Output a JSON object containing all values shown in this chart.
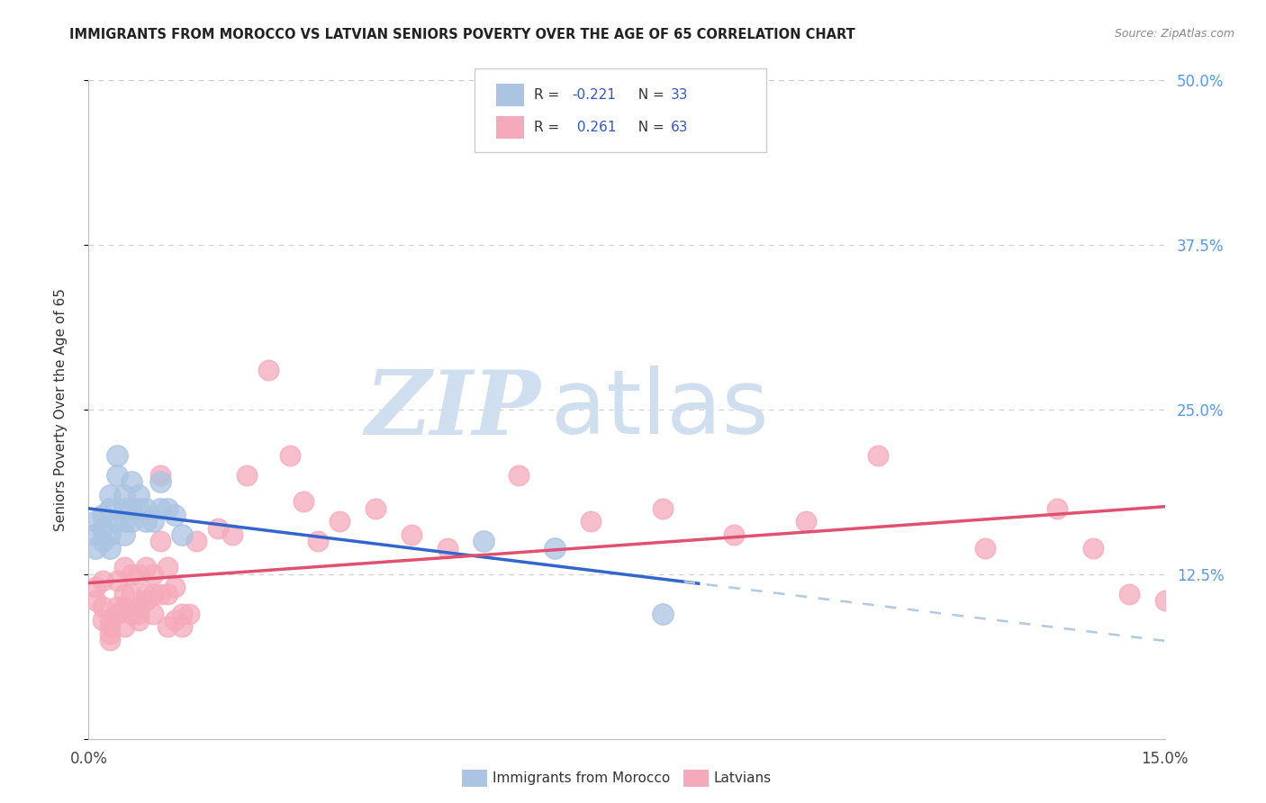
{
  "title": "IMMIGRANTS FROM MOROCCO VS LATVIAN SENIORS POVERTY OVER THE AGE OF 65 CORRELATION CHART",
  "source": "Source: ZipAtlas.com",
  "ylabel": "Seniors Poverty Over the Age of 65",
  "xlim": [
    0.0,
    0.15
  ],
  "ylim": [
    0.0,
    0.5
  ],
  "ytick_values": [
    0.125,
    0.25,
    0.375,
    0.5
  ],
  "right_ytick_labels": [
    "12.5%",
    "25.0%",
    "37.5%",
    "50.0%"
  ],
  "series1_color": "#aac4e2",
  "series2_color": "#f5aabb",
  "line1_color": "#3366cc",
  "line2_color": "#e05070",
  "dashed_color": "#b0c8e0",
  "watermark_zip": "ZIP",
  "watermark_atlas": "atlas",
  "watermark_color": "#d0dff0",
  "grid_color": "#cccccc",
  "background_color": "#ffffff",
  "series1_x": [
    0.001,
    0.001,
    0.001,
    0.002,
    0.002,
    0.002,
    0.003,
    0.003,
    0.003,
    0.003,
    0.004,
    0.004,
    0.004,
    0.005,
    0.005,
    0.005,
    0.005,
    0.006,
    0.006,
    0.006,
    0.007,
    0.007,
    0.008,
    0.008,
    0.009,
    0.01,
    0.01,
    0.011,
    0.012,
    0.013,
    0.055,
    0.065,
    0.08
  ],
  "series1_y": [
    0.145,
    0.155,
    0.165,
    0.15,
    0.16,
    0.17,
    0.145,
    0.155,
    0.175,
    0.185,
    0.2,
    0.165,
    0.215,
    0.165,
    0.175,
    0.155,
    0.185,
    0.165,
    0.175,
    0.195,
    0.175,
    0.185,
    0.175,
    0.165,
    0.165,
    0.175,
    0.195,
    0.175,
    0.17,
    0.155,
    0.15,
    0.145,
    0.095
  ],
  "series2_x": [
    0.001,
    0.001,
    0.002,
    0.002,
    0.002,
    0.003,
    0.003,
    0.003,
    0.003,
    0.004,
    0.004,
    0.004,
    0.005,
    0.005,
    0.005,
    0.005,
    0.006,
    0.006,
    0.006,
    0.007,
    0.007,
    0.007,
    0.007,
    0.008,
    0.008,
    0.008,
    0.009,
    0.009,
    0.009,
    0.01,
    0.01,
    0.01,
    0.011,
    0.011,
    0.011,
    0.012,
    0.012,
    0.013,
    0.013,
    0.014,
    0.015,
    0.018,
    0.02,
    0.022,
    0.025,
    0.028,
    0.03,
    0.032,
    0.035,
    0.04,
    0.045,
    0.05,
    0.06,
    0.07,
    0.08,
    0.09,
    0.1,
    0.11,
    0.125,
    0.135,
    0.14,
    0.145,
    0.15
  ],
  "series2_y": [
    0.115,
    0.105,
    0.1,
    0.09,
    0.12,
    0.085,
    0.09,
    0.08,
    0.075,
    0.095,
    0.1,
    0.12,
    0.11,
    0.085,
    0.1,
    0.13,
    0.11,
    0.095,
    0.125,
    0.095,
    0.1,
    0.09,
    0.125,
    0.13,
    0.11,
    0.105,
    0.095,
    0.125,
    0.11,
    0.15,
    0.2,
    0.11,
    0.11,
    0.13,
    0.085,
    0.115,
    0.09,
    0.085,
    0.095,
    0.095,
    0.15,
    0.16,
    0.155,
    0.2,
    0.28,
    0.215,
    0.18,
    0.15,
    0.165,
    0.175,
    0.155,
    0.145,
    0.2,
    0.165,
    0.175,
    0.155,
    0.165,
    0.215,
    0.145,
    0.175,
    0.145,
    0.11,
    0.105
  ]
}
